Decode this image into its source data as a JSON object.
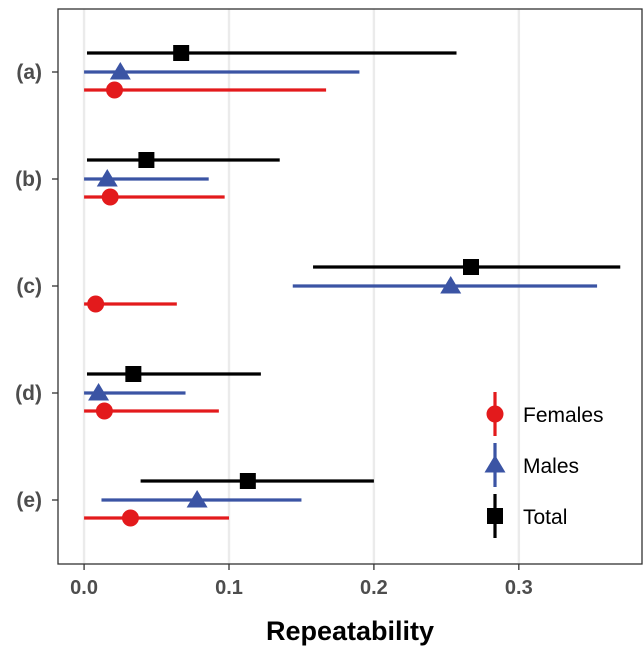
{
  "chart_data": {
    "type": "scatter",
    "xlabel": "Repeatability",
    "xlim": [
      -0.018,
      0.385
    ],
    "x_ticks": [
      {
        "value": 0.0,
        "label": "0.0"
      },
      {
        "value": 0.1,
        "label": "0.1"
      },
      {
        "value": 0.2,
        "label": "0.2"
      },
      {
        "value": 0.3,
        "label": "0.3"
      }
    ],
    "categories": [
      "(a)",
      "(b)",
      "(c)",
      "(d)",
      "(e)"
    ],
    "grid": "vertical major gridlines",
    "legend_position": "bottom-right",
    "series": [
      {
        "name": "Total",
        "marker": "square",
        "color": "#000000",
        "points": [
          {
            "category": "(a)",
            "estimate": 0.067,
            "lower": 0.002,
            "upper": 0.257
          },
          {
            "category": "(b)",
            "estimate": 0.043,
            "lower": 0.002,
            "upper": 0.135
          },
          {
            "category": "(c)",
            "estimate": 0.267,
            "lower": 0.158,
            "upper": 0.37
          },
          {
            "category": "(d)",
            "estimate": 0.034,
            "lower": 0.002,
            "upper": 0.122
          },
          {
            "category": "(e)",
            "estimate": 0.113,
            "lower": 0.039,
            "upper": 0.2
          }
        ]
      },
      {
        "name": "Males",
        "marker": "triangle",
        "color": "#3b54a4",
        "points": [
          {
            "category": "(a)",
            "estimate": 0.025,
            "lower": 0.0,
            "upper": 0.19
          },
          {
            "category": "(b)",
            "estimate": 0.016,
            "lower": 0.0,
            "upper": 0.086
          },
          {
            "category": "(c)",
            "estimate": 0.253,
            "lower": 0.144,
            "upper": 0.354
          },
          {
            "category": "(d)",
            "estimate": 0.01,
            "lower": 0.0,
            "upper": 0.07
          },
          {
            "category": "(e)",
            "estimate": 0.078,
            "lower": 0.012,
            "upper": 0.15
          }
        ]
      },
      {
        "name": "Females",
        "marker": "circle",
        "color": "#e31a1c",
        "points": [
          {
            "category": "(a)",
            "estimate": 0.021,
            "lower": 0.0,
            "upper": 0.167
          },
          {
            "category": "(b)",
            "estimate": 0.018,
            "lower": 0.0,
            "upper": 0.097
          },
          {
            "category": "(c)",
            "estimate": 0.008,
            "lower": 0.0,
            "upper": 0.064
          },
          {
            "category": "(d)",
            "estimate": 0.014,
            "lower": 0.0,
            "upper": 0.093
          },
          {
            "category": "(e)",
            "estimate": 0.032,
            "lower": 0.0,
            "upper": 0.1
          }
        ]
      }
    ],
    "legend": [
      {
        "label": "Females",
        "marker": "circle",
        "color": "#e31a1c"
      },
      {
        "label": "Males",
        "marker": "triangle",
        "color": "#3b54a4"
      },
      {
        "label": "Total",
        "marker": "square",
        "color": "#000000"
      }
    ]
  }
}
